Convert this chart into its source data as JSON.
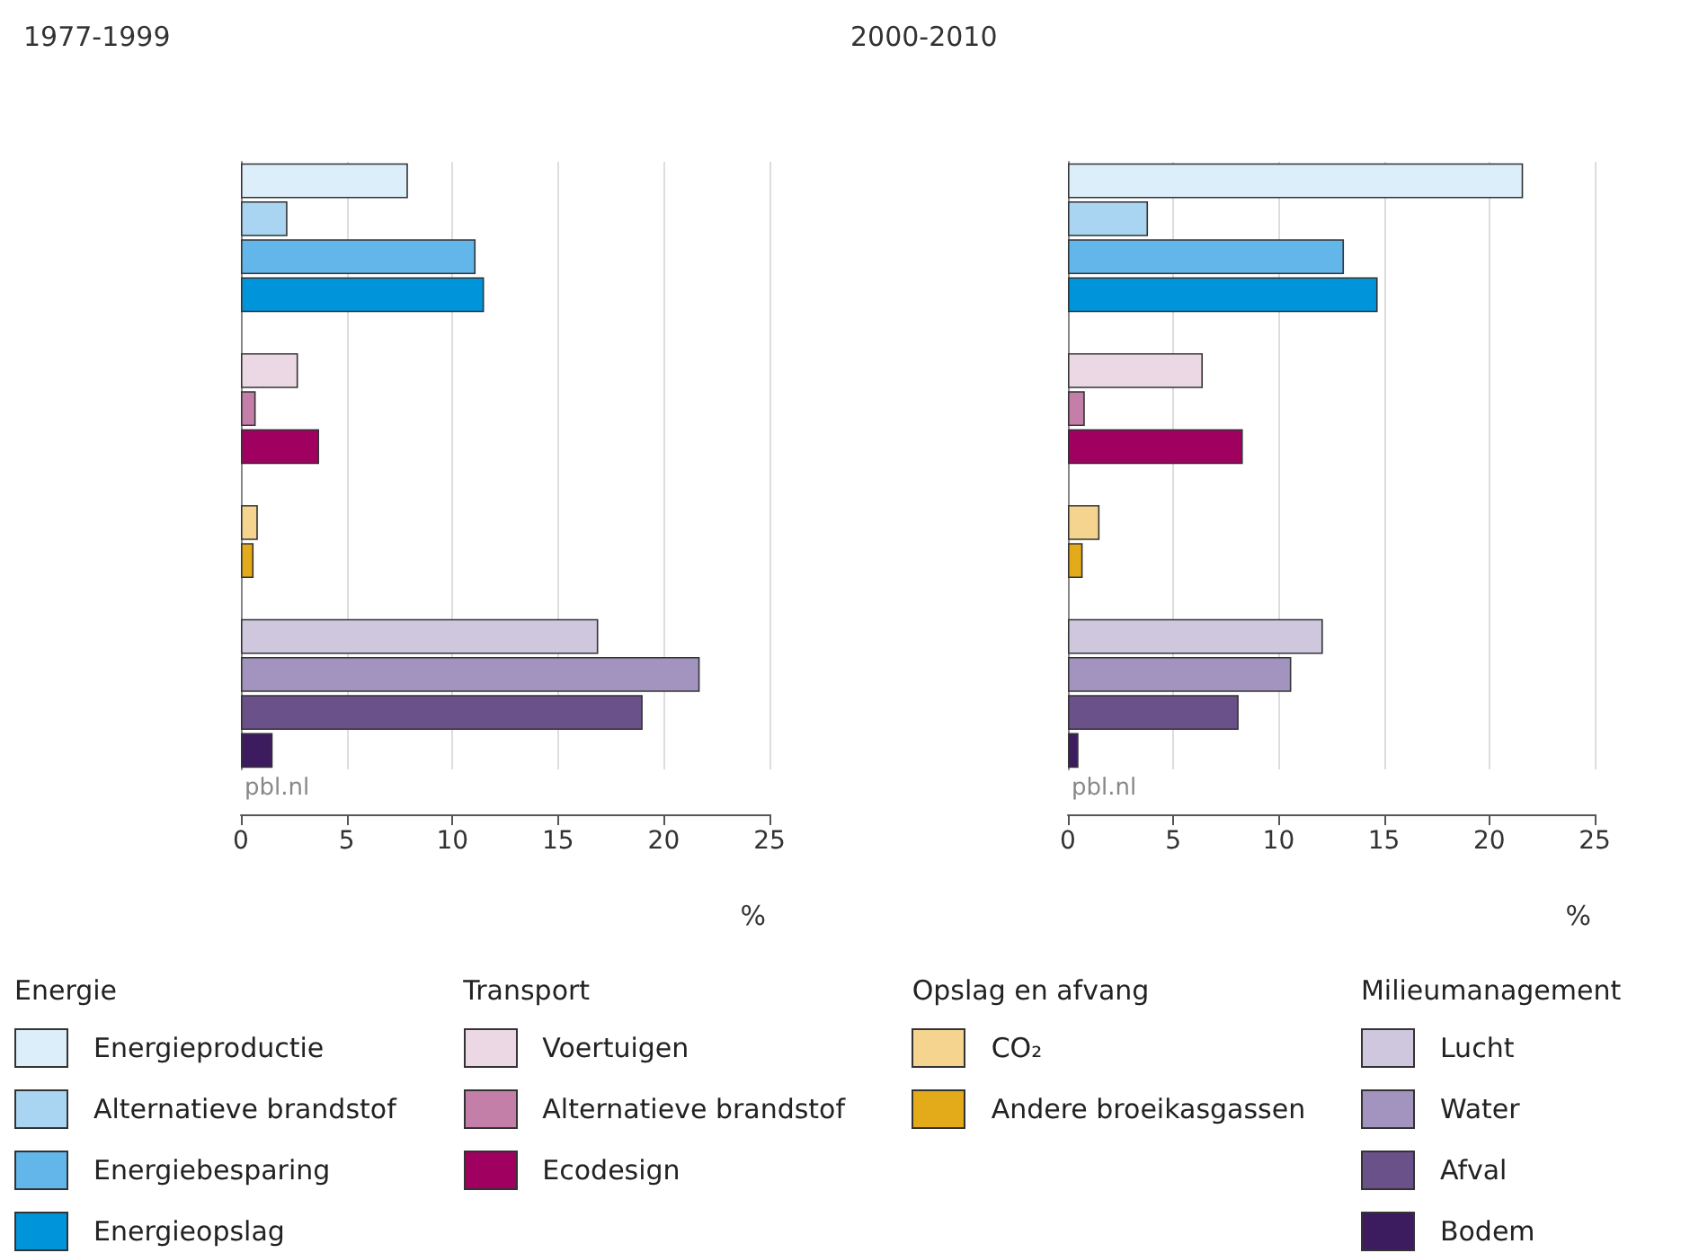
{
  "chart_data": [
    {
      "type": "bar",
      "title": "1977-1999",
      "xlabel": "%",
      "orientation": "horizontal",
      "stacked": true,
      "xlim": [
        0,
        25
      ],
      "xticks": [
        0,
        5,
        10,
        15,
        20,
        25
      ],
      "grid": "x",
      "legend": "bottom",
      "annotations": [
        "pbl.nl",
        "Energie",
        "Transport",
        "Opslag en afvang",
        "Milieumanagement"
      ],
      "categories": [
        null,
        null,
        null,
        null,
        null,
        null,
        null,
        null,
        null,
        null,
        null,
        null,
        null,
        null,
        null,
        null
      ],
      "series": [
        {
          "name": "Energieproductie",
          "color": "#dbeef9",
          "values": [
            7.9,
            null,
            null,
            null,
            null,
            null,
            null,
            null,
            null,
            null,
            null,
            null,
            null,
            null,
            null,
            null
          ]
        },
        {
          "name": "Alternatieve brandstof",
          "color": "#a9d5f2",
          "values": [
            null,
            2.2,
            null,
            null,
            null,
            null,
            null,
            null,
            null,
            null,
            null,
            null,
            null,
            null,
            null,
            null
          ]
        },
        {
          "name": "Energiebesparing",
          "color": "#62b6ea",
          "values": [
            null,
            null,
            11.1,
            null,
            null,
            null,
            null,
            null,
            null,
            null,
            null,
            null,
            null,
            null,
            null,
            null
          ]
        },
        {
          "name": "Energieopslag",
          "color": "#0095db",
          "values": [
            null,
            null,
            null,
            11.5,
            null,
            null,
            null,
            null,
            null,
            null,
            null,
            null,
            null,
            null,
            null,
            null
          ]
        },
        {
          "name": "Voertuigen",
          "color": "#ecd8e4",
          "values": [
            null,
            null,
            null,
            null,
            null,
            2.7,
            null,
            null,
            null,
            null,
            null,
            null,
            null,
            null,
            null,
            null
          ]
        },
        {
          "name": "Alternatieve brandstof",
          "color": "#c37fa8",
          "values": [
            null,
            null,
            null,
            null,
            null,
            null,
            0.7,
            null,
            null,
            null,
            null,
            null,
            null,
            null,
            null,
            null
          ]
        },
        {
          "name": "Ecodesign",
          "color": "#a00060",
          "values": [
            null,
            null,
            null,
            null,
            null,
            null,
            null,
            3.7,
            null,
            null,
            null,
            null,
            null,
            null,
            null,
            null
          ]
        },
        {
          "name": "CO₂",
          "color": "#f5d48f",
          "values": [
            null,
            null,
            null,
            null,
            null,
            null,
            null,
            null,
            null,
            0.8,
            null,
            null,
            null,
            null,
            null,
            null
          ]
        },
        {
          "name": "Andere broeikasgassen",
          "color": "#e3aa1a",
          "values": [
            null,
            null,
            null,
            null,
            null,
            null,
            null,
            null,
            null,
            null,
            0.6,
            null,
            null,
            null,
            null,
            null
          ]
        },
        {
          "name": "Lucht",
          "color": "#cfc7de",
          "values": [
            null,
            null,
            null,
            null,
            null,
            null,
            null,
            null,
            null,
            null,
            null,
            null,
            16.9,
            null,
            null,
            null
          ]
        },
        {
          "name": "Water",
          "color": "#a294be",
          "values": [
            null,
            null,
            null,
            null,
            null,
            null,
            null,
            null,
            null,
            null,
            null,
            null,
            null,
            21.7,
            null,
            null
          ]
        },
        {
          "name": "Afval",
          "color": "#6b5189",
          "values": [
            null,
            null,
            null,
            null,
            null,
            null,
            null,
            null,
            null,
            null,
            null,
            null,
            null,
            null,
            19.0,
            null
          ]
        },
        {
          "name": "Bodem",
          "color": "#3c1c5e",
          "values": [
            null,
            null,
            null,
            null,
            null,
            null,
            null,
            null,
            null,
            null,
            null,
            null,
            null,
            null,
            null,
            1.5
          ]
        }
      ]
    },
    {
      "type": "bar",
      "title": "2000-2010",
      "xlabel": "%",
      "orientation": "horizontal",
      "stacked": true,
      "xlim": [
        0,
        25
      ],
      "xticks": [
        0,
        5,
        10,
        15,
        20,
        25
      ],
      "grid": "x",
      "annotations": [
        "pbl.nl"
      ],
      "categories": [
        null,
        null,
        null,
        null,
        null,
        null,
        null,
        null,
        null,
        null,
        null,
        null,
        null,
        null,
        null,
        null
      ],
      "series": [
        {
          "color": "#dbeef9",
          "values": [
            21.6,
            null,
            null,
            null,
            null,
            null,
            null,
            null,
            null,
            null,
            null,
            null,
            null,
            null,
            null,
            null
          ]
        },
        {
          "color": "#a9d5f2",
          "values": [
            null,
            3.8,
            null,
            null,
            null,
            null,
            null,
            null,
            null,
            null,
            null,
            null,
            null,
            null,
            null,
            null
          ]
        },
        {
          "color": "#62b6ea",
          "values": [
            null,
            null,
            13.1,
            null,
            null,
            null,
            null,
            null,
            null,
            null,
            null,
            null,
            null,
            null,
            null,
            null
          ]
        },
        {
          "color": "#0095db",
          "values": [
            null,
            null,
            null,
            14.7,
            null,
            null,
            null,
            null,
            null,
            null,
            null,
            null,
            null,
            null,
            null,
            null
          ]
        },
        {
          "color": "#ecd8e4",
          "values": [
            null,
            null,
            null,
            null,
            null,
            6.4,
            null,
            null,
            null,
            null,
            null,
            null,
            null,
            null,
            null,
            null
          ]
        },
        {
          "color": "#c37fa8",
          "values": [
            null,
            null,
            null,
            null,
            null,
            null,
            0.8,
            null,
            null,
            null,
            null,
            null,
            null,
            null,
            null,
            null
          ]
        },
        {
          "color": "#a00060",
          "values": [
            null,
            null,
            null,
            null,
            null,
            null,
            null,
            8.3,
            null,
            null,
            null,
            null,
            null,
            null,
            null,
            null
          ]
        },
        {
          "color": "#f5d48f",
          "values": [
            null,
            null,
            null,
            null,
            null,
            null,
            null,
            null,
            null,
            1.5,
            null,
            null,
            null,
            null,
            null,
            null
          ]
        },
        {
          "color": "#e3aa1a",
          "values": [
            null,
            null,
            null,
            null,
            null,
            null,
            null,
            null,
            null,
            null,
            0.7,
            null,
            null,
            null,
            null,
            null
          ]
        },
        {
          "color": "#cfc7de",
          "values": [
            null,
            null,
            null,
            null,
            null,
            null,
            null,
            null,
            null,
            null,
            null,
            null,
            12.1,
            null,
            null,
            null
          ]
        },
        {
          "color": "#a294be",
          "values": [
            null,
            null,
            null,
            null,
            null,
            null,
            null,
            null,
            null,
            null,
            null,
            null,
            null,
            10.6,
            null,
            null
          ]
        },
        {
          "color": "#6b5189",
          "values": [
            null,
            null,
            null,
            null,
            null,
            null,
            null,
            null,
            null,
            null,
            null,
            null,
            null,
            null,
            8.1,
            null
          ]
        },
        {
          "color": "#3c1c5e",
          "values": [
            null,
            null,
            null,
            null,
            null,
            null,
            null,
            null,
            null,
            null,
            null,
            null,
            null,
            null,
            null,
            0.5
          ]
        }
      ]
    }
  ]
}
